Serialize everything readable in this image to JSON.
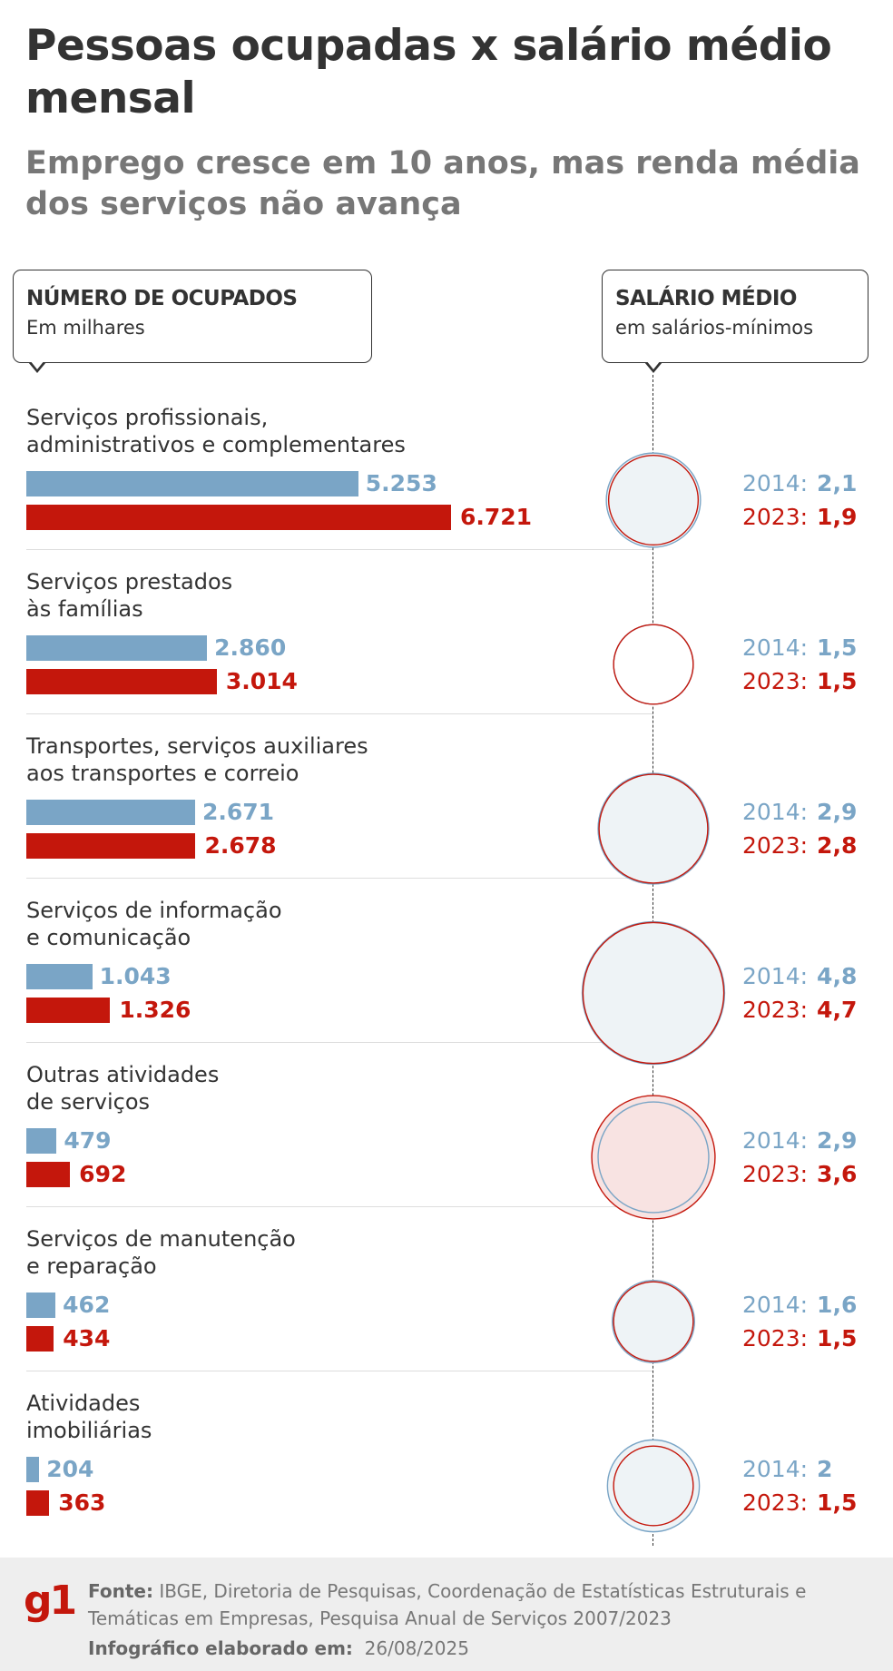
{
  "title": "Pessoas ocupadas x salário médio mensal",
  "subtitle": "Emprego cresce em 10 anos, mas renda média dos serviços não avança",
  "left_box": {
    "heading": "NÚMERO DE OCUPADOS",
    "sub": "Em milhares"
  },
  "right_box": {
    "heading": "SALÁRIO MÉDIO",
    "sub": "em salários-mínimos"
  },
  "colors": {
    "y2014": "#7aa5c6",
    "y2023": "#c4170c",
    "circle_fill": "#eef3f6",
    "circle_fill_up": "#f8e3e2"
  },
  "chart_data": {
    "type": "bar",
    "categories": [
      "Serviços profissionais, administrativos e complementares",
      "Serviços prestados às famílias",
      "Transportes, serviços auxiliares aos transportes e correio",
      "Serviços de informação e comunicação",
      "Outras atividades de serviços",
      "Serviços de manutenção e reparação",
      "Atividades imobiliárias"
    ],
    "category_lines": [
      [
        "Serviços profissionais,",
        "administrativos e complementares"
      ],
      [
        "Serviços prestados",
        "às famílias"
      ],
      [
        "Transportes, serviços auxiliares",
        "aos transportes e correio"
      ],
      [
        "Serviços de informação",
        "e comunicação"
      ],
      [
        "Outras atividades",
        "de serviços"
      ],
      [
        "Serviços de manutenção",
        "e reparação"
      ],
      [
        "Atividades",
        "imobiliárias"
      ]
    ],
    "series": [
      {
        "name": "2014",
        "occupied": [
          5253,
          2860,
          2671,
          1043,
          479,
          462,
          204
        ],
        "occupied_labels": [
          "5.253",
          "2.860",
          "2.671",
          "1.043",
          "479",
          "462",
          "204"
        ],
        "salary": [
          2.1,
          1.5,
          2.9,
          4.8,
          2.9,
          1.6,
          2
        ],
        "salary_labels": [
          "2,1",
          "1,5",
          "2,9",
          "4,8",
          "2,9",
          "1,6",
          "2"
        ]
      },
      {
        "name": "2023",
        "occupied": [
          6721,
          3014,
          2678,
          1326,
          692,
          434,
          363
        ],
        "occupied_labels": [
          "6.721",
          "3.014",
          "2.678",
          "1.326",
          "692",
          "434",
          "363"
        ],
        "salary": [
          1.9,
          1.5,
          2.8,
          4.7,
          3.6,
          1.5,
          1.5
        ],
        "salary_labels": [
          "1,9",
          "1,5",
          "2,8",
          "4,7",
          "3,6",
          "1,5",
          "1,5"
        ]
      }
    ],
    "year_labels": [
      "2014:",
      "2023:"
    ]
  },
  "footer": {
    "logo": "g1",
    "source_label": "Fonte:",
    "source_text": "IBGE, Diretoria de Pesquisas, Coordenação de Estatísticas Estruturais e Temáticas em Empresas, Pesquisa Anual de Serviços 2007/2023",
    "date_label": "Infográfico elaborado em:",
    "date": "26/08/2025"
  }
}
